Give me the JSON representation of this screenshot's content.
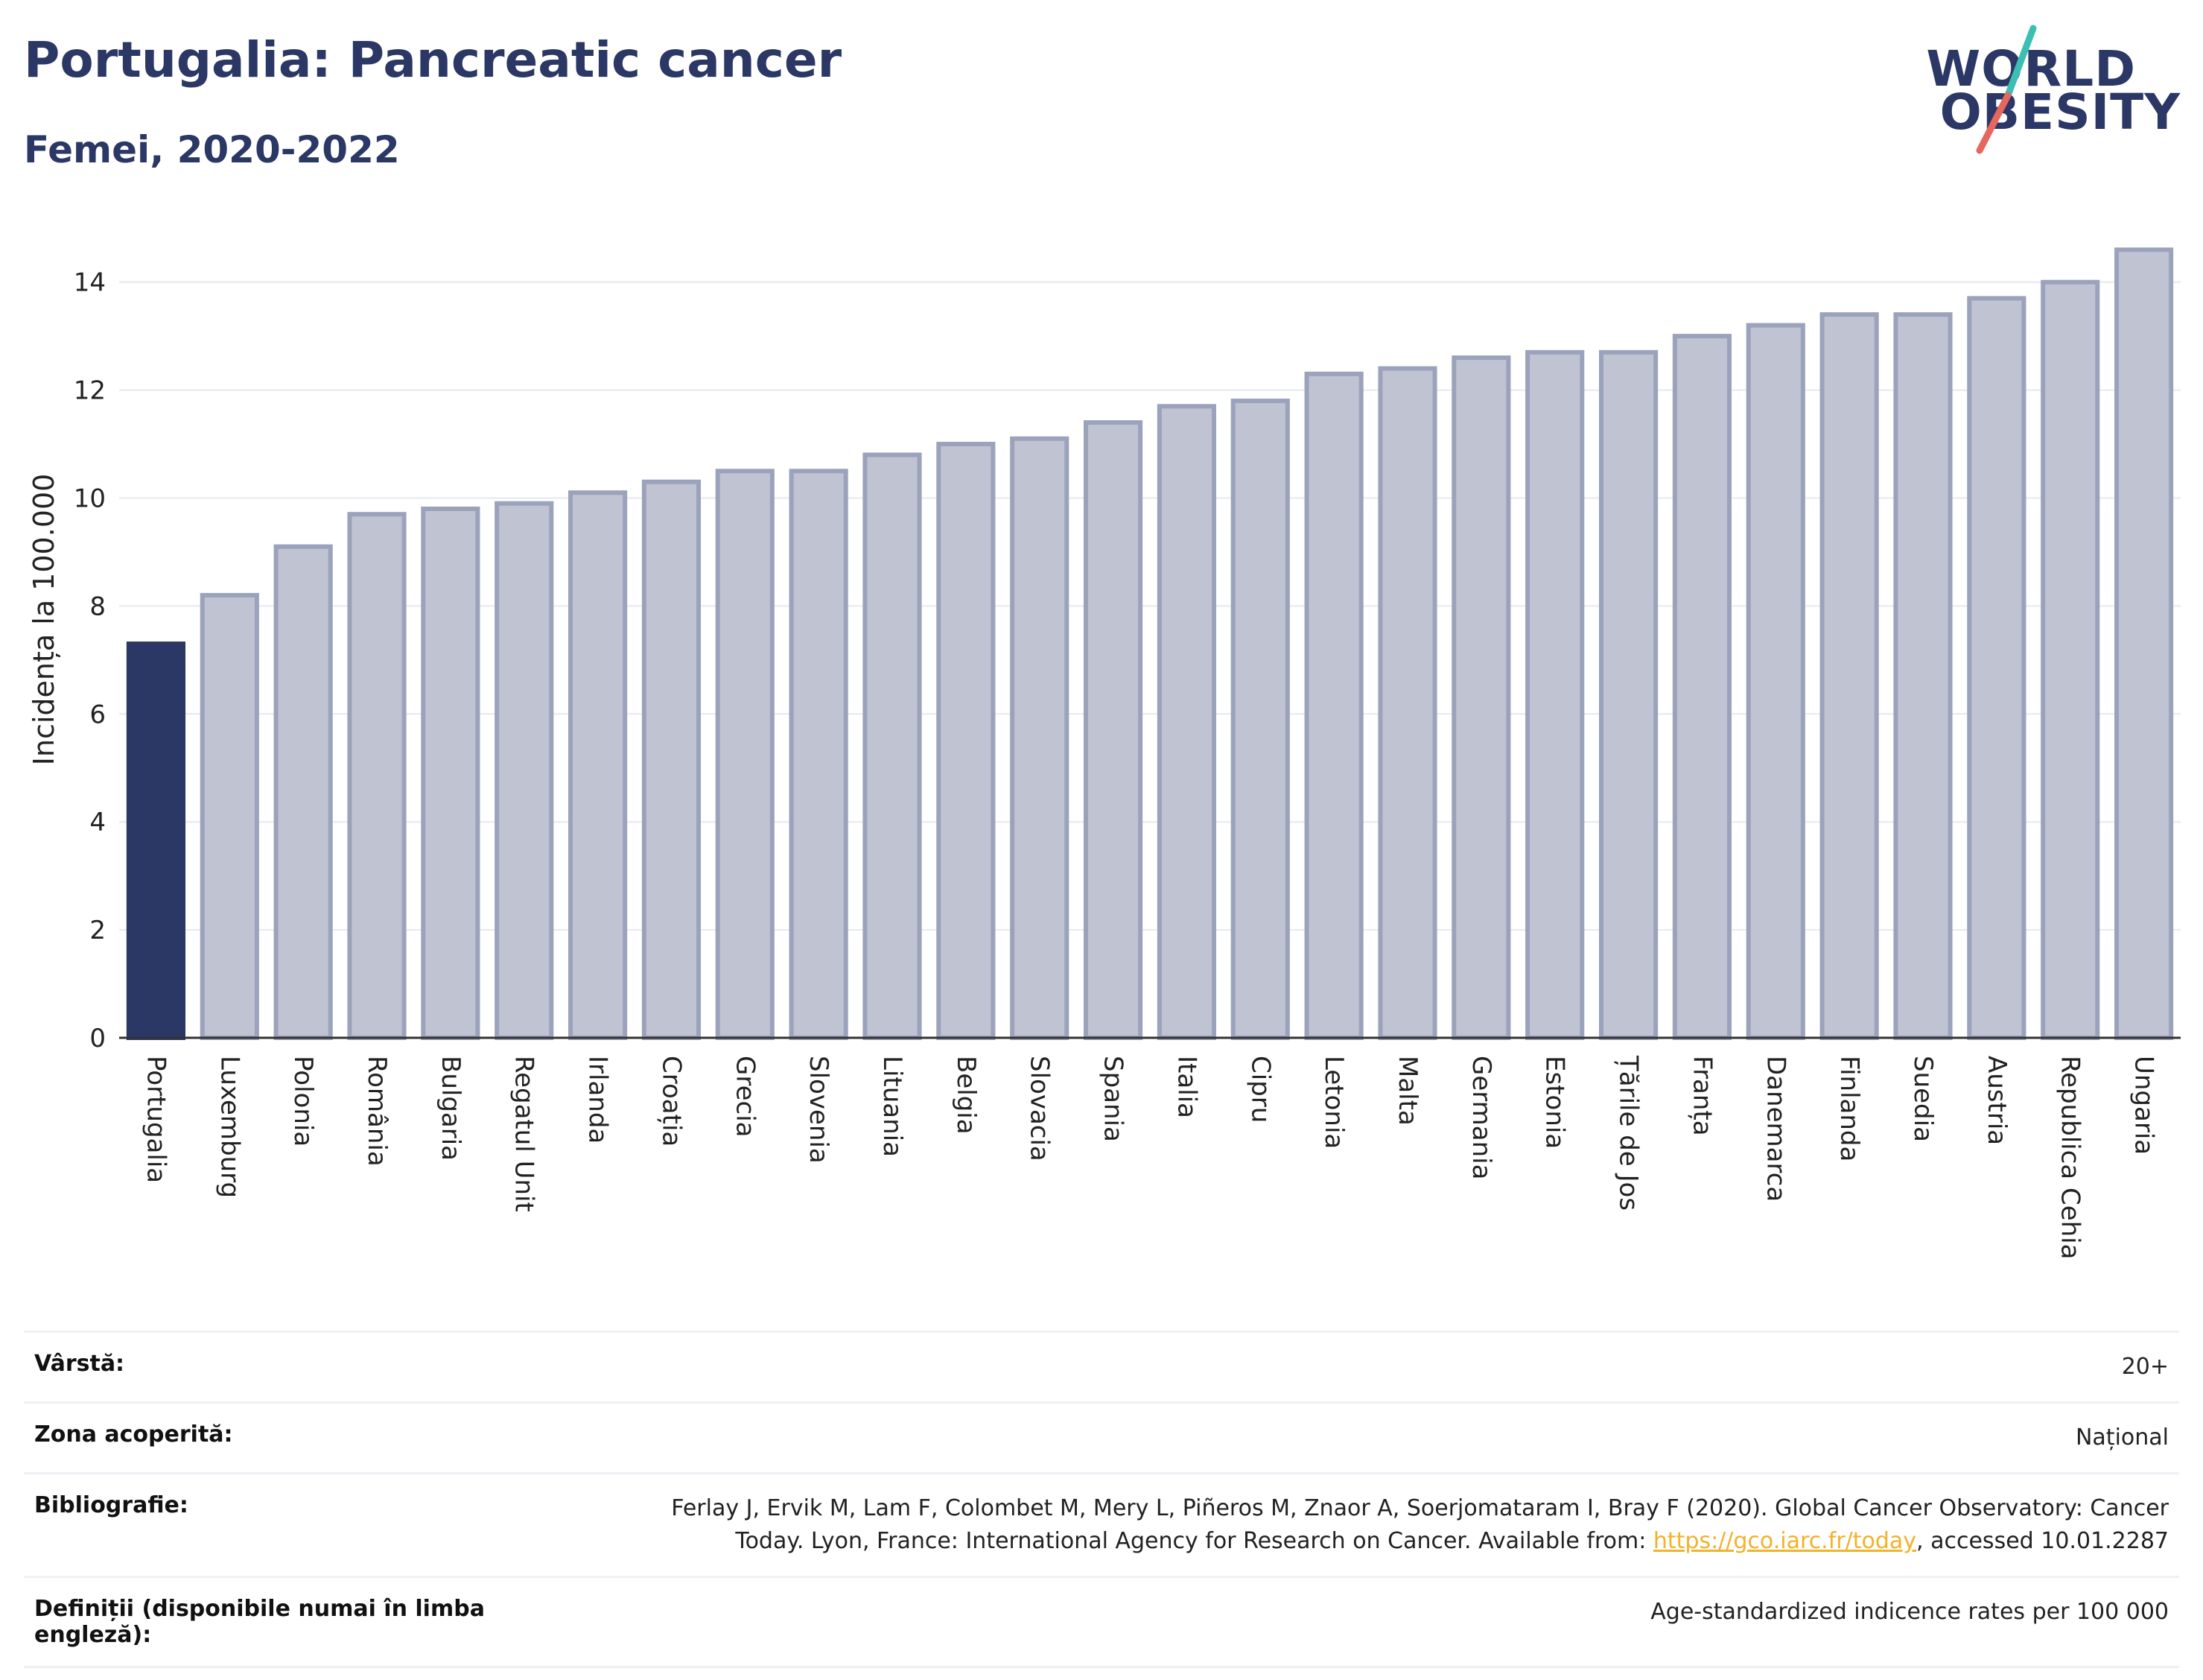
{
  "header": {
    "title": "Portugalia: Pancreatic cancer",
    "subtitle": "Femei, 2020-2022",
    "logo_line1": "WORLD",
    "logo_line2": "OBESITY"
  },
  "colors": {
    "highlight": "#2b3765",
    "bar_fill": "#bfc3d2",
    "bar_stroke": "#9ba2bb",
    "logo_teal": "#3cbfb3",
    "logo_coral": "#e5675d",
    "link": "#f2b22a"
  },
  "chart_data": {
    "type": "bar",
    "ylabel": "Incidența la 100.000",
    "ylim": [
      0,
      15.5
    ],
    "yticks": [
      0,
      2,
      4,
      6,
      8,
      10,
      12,
      14
    ],
    "grid": true,
    "highlight_category": "Portugalia",
    "categories": [
      "Portugalia",
      "Luxemburg",
      "Polonia",
      "România",
      "Bulgaria",
      "Regatul Unit",
      "Irlanda",
      "Croația",
      "Grecia",
      "Slovenia",
      "Lituania",
      "Belgia",
      "Slovacia",
      "Spania",
      "Italia",
      "Cipru",
      "Letonia",
      "Malta",
      "Germania",
      "Estonia",
      "Țările de Jos",
      "Franța",
      "Danemarca",
      "Finlanda",
      "Suedia",
      "Austria",
      "Republica Cehia",
      "Ungaria"
    ],
    "values": [
      7.3,
      8.2,
      9.1,
      9.7,
      9.8,
      9.9,
      10.1,
      10.3,
      10.5,
      10.5,
      10.8,
      11.0,
      11.1,
      11.4,
      11.7,
      11.8,
      12.3,
      12.4,
      12.6,
      12.7,
      12.7,
      13.0,
      13.2,
      13.4,
      13.4,
      13.7,
      14.0,
      14.6
    ]
  },
  "meta": {
    "age_label": "Vârstă:",
    "age_value": "20+",
    "coverage_label": "Zona acoperită:",
    "coverage_value": "Național",
    "bib_label": "Bibliografie:",
    "bib_text_1": "Ferlay J, Ervik M, Lam F, Colombet M, Mery L, Piñeros M, Znaor A, Soerjomataram I, Bray F (2020). Global Cancer Observatory: Cancer",
    "bib_text_2": "Today. Lyon, France: International Agency for Research on Cancer. Available from: ",
    "bib_link": "https://gco.iarc.fr/today",
    "bib_text_3": ", accessed 10.01.2287",
    "def_label": "Definiții (disponibile numai în limba engleză):",
    "def_value": "Age-standardized indicence rates per 100 000"
  }
}
